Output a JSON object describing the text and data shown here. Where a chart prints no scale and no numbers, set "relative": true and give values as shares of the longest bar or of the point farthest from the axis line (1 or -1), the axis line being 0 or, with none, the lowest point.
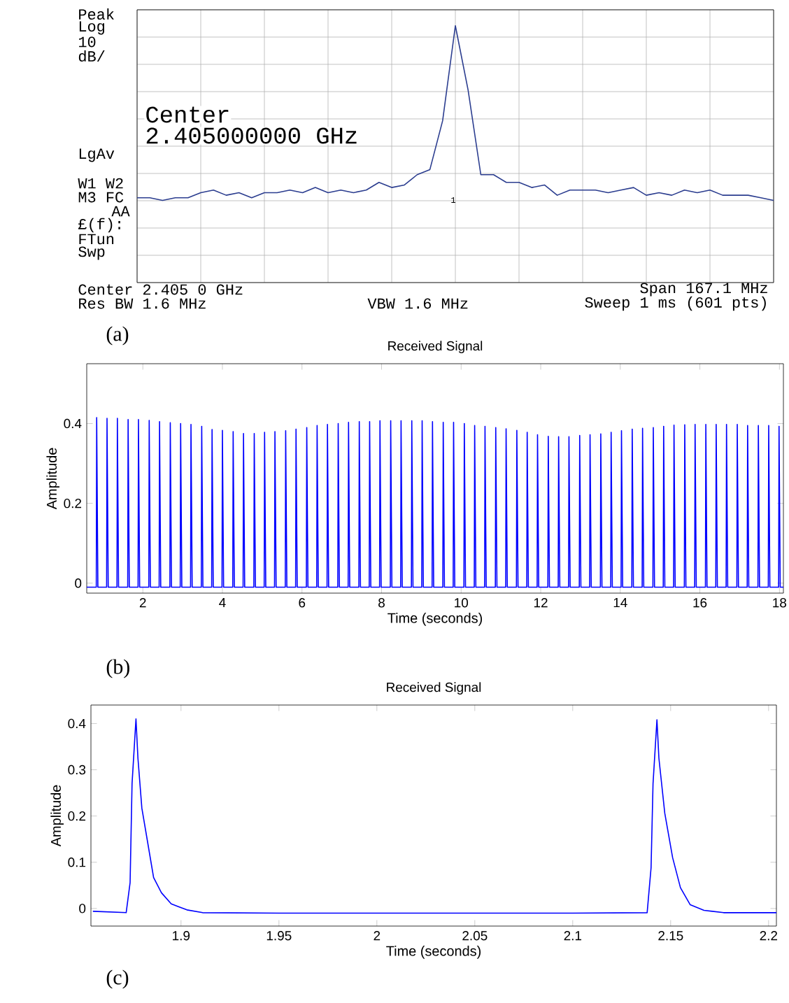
{
  "chart_data": [
    {
      "type": "line",
      "relative": true,
      "grid": true,
      "color": "#2b3d8f",
      "categories": [
        null,
        null,
        null,
        null,
        null,
        null,
        null,
        null,
        null,
        null,
        null,
        null,
        null,
        null,
        null,
        null,
        null,
        null,
        null,
        null,
        null,
        null,
        null,
        null,
        null,
        null,
        null,
        null,
        null,
        null,
        null,
        null,
        null,
        null,
        null,
        null,
        null,
        null,
        null,
        null,
        null,
        null,
        null,
        null,
        null,
        null,
        null,
        null,
        null,
        null,
        null
      ],
      "values": [
        0.33,
        0.33,
        0.32,
        0.33,
        0.33,
        0.35,
        0.36,
        0.34,
        0.35,
        0.33,
        0.35,
        0.35,
        0.36,
        0.35,
        0.37,
        0.35,
        0.36,
        0.35,
        0.36,
        0.39,
        0.37,
        0.38,
        0.42,
        0.44,
        0.63,
        1,
        0.75,
        0.42,
        0.42,
        0.39,
        0.39,
        0.37,
        0.38,
        0.34,
        0.36,
        0.36,
        0.36,
        0.35,
        0.36,
        0.37,
        0.34,
        0.35,
        0.34,
        0.36,
        0.35,
        0.36,
        0.34,
        0.34,
        0.34,
        0.33,
        0.32
      ],
      "annotations": [
        "Peak",
        "Log",
        "10",
        "dB/",
        "Center",
        "2.405000000 GHz",
        "LgAv",
        "W1  W2",
        "M3 FC",
        "AA",
        "£(f):",
        "FTun",
        "Swp",
        "Center 2.405 0 GHz",
        "Res BW 1.6 MHz",
        "VBW 1.6 MHz",
        "Span 167.1 MHz",
        "Sweep 1 ms (601 pts)",
        "1",
        "(a)"
      ]
    },
    {
      "type": "line",
      "title": "Received Signal",
      "xlabel": "Time (seconds)",
      "ylabel": "Amplitude",
      "color": "#0000ff",
      "xlim": [
        0.59,
        18.1
      ],
      "ylim": [
        -0.025,
        0.55
      ],
      "xticks": [
        2,
        4,
        6,
        8,
        10,
        12,
        14,
        16,
        18
      ],
      "yticks": [
        0,
        0.2,
        0.4
      ],
      "x": [
        0.59,
        0.83,
        0.84,
        0.87,
        1.09,
        1.1,
        1.13,
        1.35,
        1.36,
        1.39,
        1.62,
        1.63,
        1.66,
        1.88,
        1.89,
        1.92,
        2.15,
        2.16,
        2.19,
        2.41,
        2.42,
        2.45,
        2.68,
        2.69,
        2.72,
        2.94,
        2.95,
        2.98,
        3.2,
        3.21,
        3.24,
        3.47,
        3.48,
        3.51,
        3.73,
        3.74,
        3.77,
        3.99,
        4.0,
        4.03,
        4.26,
        4.27,
        4.3,
        4.52,
        4.53,
        4.56,
        4.79,
        4.8,
        4.83,
        5.05,
        5.06,
        5.09,
        5.31,
        5.32,
        5.35,
        5.58,
        5.59,
        5.62,
        5.84,
        5.85,
        5.88,
        6.11,
        6.12,
        6.15,
        6.37,
        6.38,
        6.41,
        6.63,
        6.64,
        6.67,
        6.9,
        6.91,
        6.94,
        7.16,
        7.17,
        7.2,
        7.43,
        7.44,
        7.47,
        7.69,
        7.7,
        7.73,
        7.95,
        7.96,
        7.99,
        8.22,
        8.23,
        8.26,
        8.48,
        8.49,
        8.52,
        8.75,
        8.76,
        8.79,
        9.01,
        9.02,
        9.05,
        9.27,
        9.28,
        9.31,
        9.54,
        9.55,
        9.58,
        9.8,
        9.81,
        9.84,
        10.07,
        10.08,
        10.11,
        10.33,
        10.34,
        10.37,
        10.59,
        10.6,
        10.63,
        10.86,
        10.87,
        10.9,
        11.12,
        11.13,
        11.16,
        11.39,
        11.4,
        11.43,
        11.65,
        11.66,
        11.69,
        11.91,
        11.92,
        11.95,
        12.18,
        12.19,
        12.22,
        12.44,
        12.45,
        12.48,
        12.7,
        12.71,
        12.74,
        12.97,
        12.98,
        13.01,
        13.23,
        13.24,
        13.27,
        13.5,
        13.51,
        13.54,
        13.76,
        13.77,
        13.8,
        14.02,
        14.03,
        14.06,
        14.29,
        14.3,
        14.33,
        14.55,
        14.56,
        14.59,
        14.82,
        14.83,
        14.86,
        15.08,
        15.09,
        15.12,
        15.34,
        15.35,
        15.38,
        15.61,
        15.62,
        15.65,
        15.87,
        15.88,
        15.91,
        16.14,
        16.15,
        16.18,
        16.4,
        16.41,
        16.44,
        16.66,
        16.67,
        16.7,
        16.93,
        16.94,
        16.97,
        17.19,
        17.2,
        17.23,
        17.46,
        17.47,
        17.5,
        17.72,
        17.73,
        17.76,
        17.98,
        17.99,
        18.02,
        18.1
      ],
      "values": [
        -0.01,
        -0.01,
        0.415,
        -0.01,
        -0.01,
        0.413,
        -0.01,
        -0.01,
        0.413,
        -0.01,
        -0.01,
        0.41,
        -0.01,
        -0.01,
        0.41,
        -0.01,
        -0.01,
        0.408,
        -0.01,
        -0.01,
        0.405,
        -0.01,
        -0.01,
        0.402,
        -0.01,
        -0.01,
        0.4,
        -0.01,
        -0.01,
        0.398,
        -0.01,
        -0.01,
        0.393,
        -0.01,
        -0.01,
        0.385,
        -0.01,
        -0.01,
        0.383,
        -0.01,
        -0.01,
        0.38,
        -0.01,
        -0.01,
        0.375,
        -0.01,
        -0.01,
        0.375,
        -0.01,
        -0.01,
        0.378,
        -0.01,
        -0.01,
        0.38,
        -0.01,
        -0.01,
        0.382,
        -0.01,
        -0.01,
        0.386,
        -0.01,
        -0.01,
        0.39,
        -0.01,
        -0.01,
        0.395,
        -0.01,
        -0.01,
        0.398,
        -0.01,
        -0.01,
        0.4,
        -0.01,
        -0.01,
        0.403,
        -0.01,
        -0.01,
        0.405,
        -0.01,
        -0.01,
        0.405,
        -0.01,
        -0.01,
        0.407,
        -0.01,
        -0.01,
        0.407,
        -0.01,
        -0.01,
        0.407,
        -0.01,
        -0.01,
        0.407,
        -0.01,
        -0.01,
        0.407,
        -0.01,
        -0.01,
        0.405,
        -0.01,
        -0.01,
        0.403,
        -0.01,
        -0.01,
        0.403,
        -0.01,
        -0.01,
        0.4,
        -0.01,
        -0.01,
        0.395,
        -0.01,
        -0.01,
        0.393,
        -0.01,
        -0.01,
        0.39,
        -0.01,
        -0.01,
        0.387,
        -0.01,
        -0.01,
        0.383,
        -0.01,
        -0.01,
        0.378,
        -0.01,
        -0.01,
        0.372,
        -0.01,
        -0.01,
        0.368,
        -0.01,
        -0.01,
        0.367,
        -0.01,
        -0.01,
        0.367,
        -0.01,
        -0.01,
        0.37,
        -0.01,
        -0.01,
        0.372,
        -0.01,
        -0.01,
        0.374,
        -0.01,
        -0.01,
        0.378,
        -0.01,
        -0.01,
        0.382,
        -0.01,
        -0.01,
        0.386,
        -0.01,
        -0.01,
        0.388,
        -0.01,
        -0.01,
        0.39,
        -0.01,
        -0.01,
        0.393,
        -0.01,
        -0.01,
        0.396,
        -0.01,
        -0.01,
        0.397,
        -0.01,
        -0.01,
        0.398,
        -0.01,
        -0.01,
        0.398,
        -0.01,
        -0.01,
        0.398,
        -0.01,
        -0.01,
        0.398,
        -0.01,
        -0.01,
        0.398,
        -0.01,
        -0.01,
        0.395,
        -0.01,
        -0.01,
        0.395,
        -0.01,
        -0.01,
        0.395,
        -0.01,
        -0.01,
        0.393,
        -0.01,
        -0.01
      ],
      "annotations": [
        "(b)"
      ]
    },
    {
      "type": "line",
      "title": "Received Signal",
      "xlabel": "Time (seconds)",
      "ylabel": "Amplitude",
      "color": "#0000ff",
      "xlim": [
        1.854,
        2.204
      ],
      "ylim": [
        -0.038,
        0.44
      ],
      "xticks": [
        1.9,
        1.95,
        2,
        2.05,
        2.1,
        2.15,
        2.2
      ],
      "yticks": [
        0,
        0.1,
        0.2,
        0.3,
        0.4
      ],
      "x": [
        1.855,
        1.872,
        1.874,
        1.875,
        1.877,
        1.878,
        1.88,
        1.883,
        1.886,
        1.89,
        1.895,
        1.903,
        1.911,
        1.95,
        2,
        2.05,
        2.1,
        2.138,
        2.14,
        2.141,
        2.143,
        2.144,
        2.147,
        2.151,
        2.155,
        2.16,
        2.167,
        2.177,
        2.204
      ],
      "values": [
        -0.006,
        -0.009,
        0.056,
        0.27,
        0.41,
        0.325,
        0.217,
        0.142,
        0.067,
        0.034,
        0.01,
        -0.003,
        -0.009,
        -0.01,
        -0.01,
        -0.01,
        -0.01,
        -0.009,
        0.088,
        0.27,
        0.408,
        0.325,
        0.206,
        0.11,
        0.045,
        0.008,
        -0.004,
        -0.009,
        -0.009
      ],
      "annotations": [
        "(c)"
      ]
    }
  ]
}
